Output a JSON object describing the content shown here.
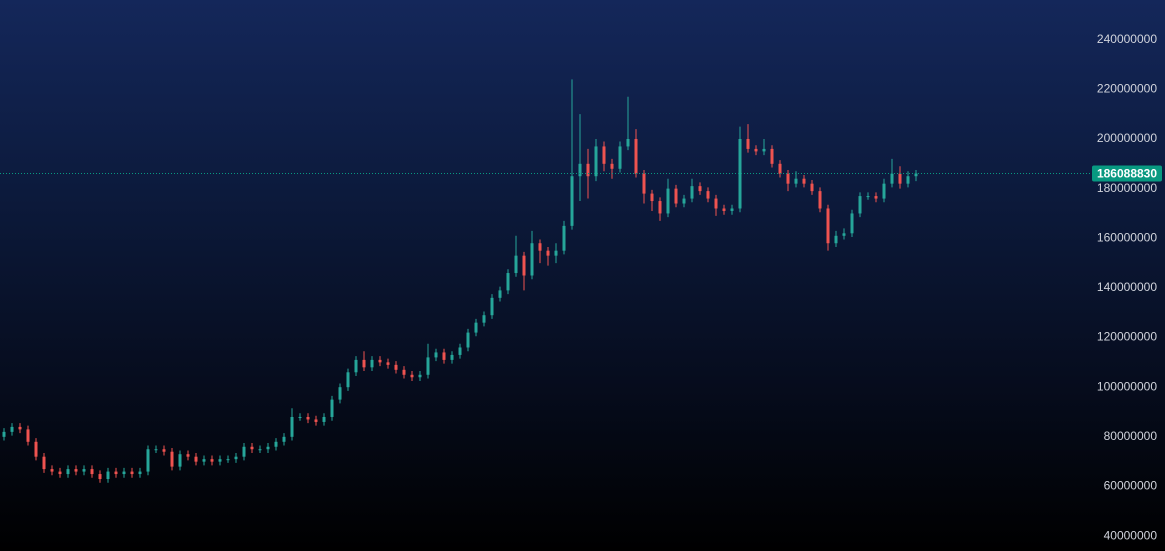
{
  "chart_data": {
    "type": "candlestick",
    "ylim": [
      34000000,
      256000000
    ],
    "yticks": [
      40000000,
      60000000,
      80000000,
      100000000,
      120000000,
      140000000,
      160000000,
      180000000,
      200000000,
      220000000,
      240000000
    ],
    "up_color": "#26a69a",
    "down_color": "#ef5350",
    "last_price_color": "#089981",
    "open": [
      80000000,
      82000000,
      84000000,
      83000000,
      78000000,
      72000000,
      67000000,
      66000000,
      65000000,
      67000000,
      66000000,
      67000000,
      65000000,
      63000000,
      66000000,
      65000000,
      66000000,
      65000000,
      66000000,
      75000000,
      75000000,
      74000000,
      68000000,
      73000000,
      72000000,
      70000000,
      71000000,
      70000000,
      71000000,
      71000000,
      72000000,
      76000000,
      75000000,
      75000000,
      76000000,
      78000000,
      80000000,
      88000000,
      88000000,
      87000000,
      86000000,
      88000000,
      95000000,
      100000000,
      106000000,
      111000000,
      108000000,
      111000000,
      110000000,
      109000000,
      107000000,
      105000000,
      104000000,
      105000000,
      112000000,
      114000000,
      111000000,
      113000000,
      116000000,
      122000000,
      126000000,
      129000000,
      136000000,
      139000000,
      146000000,
      153000000,
      145000000,
      158000000,
      155000000,
      153000000,
      155000000,
      165000000,
      185000000,
      190000000,
      185000000,
      197000000,
      190000000,
      188000000,
      197000000,
      200000000,
      186000000,
      178000000,
      175000000,
      170000000,
      180000000,
      174000000,
      176000000,
      181000000,
      179000000,
      176000000,
      172000000,
      171000000,
      172000000,
      200000000,
      196000000,
      195000000,
      196000000,
      190000000,
      186000000,
      182000000,
      184000000,
      182000000,
      179000000,
      172000000,
      158000000,
      161000000,
      162000000,
      170000000,
      177000000,
      177000000,
      176000000,
      182000000,
      186000000,
      182000000,
      185000000
    ],
    "high": [
      83500000,
      85500000,
      85500000,
      84500000,
      79500000,
      73500000,
      68500000,
      67500000,
      68500000,
      68500000,
      68500000,
      68500000,
      66500000,
      67500000,
      67500000,
      67500000,
      67500000,
      67500000,
      76500000,
      76500000,
      76500000,
      75500000,
      74500000,
      74500000,
      73500000,
      72500000,
      72500000,
      72500000,
      72500000,
      73500000,
      77500000,
      77500000,
      76500000,
      77500000,
      79500000,
      81500000,
      91500000,
      89500000,
      89500000,
      88500000,
      89500000,
      96500000,
      101500000,
      107500000,
      112500000,
      114500000,
      112500000,
      112500000,
      111500000,
      110500000,
      108500000,
      106500000,
      106500000,
      117500000,
      115500000,
      115500000,
      114500000,
      117500000,
      123500000,
      127500000,
      130500000,
      137500000,
      140500000,
      147500000,
      161000000,
      154500000,
      163000000,
      159500000,
      156500000,
      158000000,
      167000000,
      224000000,
      210000000,
      196000000,
      200000000,
      199000000,
      192000000,
      199000000,
      217000000,
      204000000,
      187500000,
      179500000,
      176500000,
      184000000,
      181500000,
      177500000,
      184000000,
      182500000,
      180500000,
      177500000,
      173500000,
      173500000,
      205000000,
      206000000,
      197500000,
      200000000,
      197500000,
      191500000,
      187500000,
      187000000,
      185500000,
      183500000,
      180500000,
      173500000,
      163000000,
      164000000,
      171500000,
      178500000,
      178500000,
      178500000,
      184000000,
      192000000,
      189000000,
      187000000,
      187500000
    ],
    "low": [
      78500000,
      80500000,
      81500000,
      76500000,
      70500000,
      65500000,
      64500000,
      63500000,
      63500000,
      64500000,
      64500000,
      63500000,
      61500000,
      61500000,
      63500000,
      63500000,
      63500000,
      63500000,
      64500000,
      73500000,
      72500000,
      66500000,
      66500000,
      70500000,
      68500000,
      68500000,
      68500000,
      68500000,
      69500000,
      69500000,
      70500000,
      73500000,
      73500000,
      73500000,
      74500000,
      76500000,
      78500000,
      86500000,
      85500000,
      84500000,
      84500000,
      86500000,
      93500000,
      98500000,
      104500000,
      106500000,
      106500000,
      108500000,
      107500000,
      105500000,
      103500000,
      102500000,
      102500000,
      103500000,
      110500000,
      109500000,
      109500000,
      111500000,
      114500000,
      120500000,
      124500000,
      127500000,
      134500000,
      137500000,
      144500000,
      139000000,
      143500000,
      150000000,
      149000000,
      150000000,
      153500000,
      163500000,
      175000000,
      176000000,
      183000000,
      187000000,
      184000000,
      186500000,
      195500000,
      184500000,
      174000000,
      171000000,
      167000000,
      168500000,
      172500000,
      172500000,
      174500000,
      177500000,
      174500000,
      169000000,
      169500000,
      169500000,
      170500000,
      194500000,
      193500000,
      193500000,
      188500000,
      184500000,
      179000000,
      180500000,
      180500000,
      177500000,
      170500000,
      155000000,
      156500000,
      159500000,
      160500000,
      168500000,
      175500000,
      174500000,
      174500000,
      180500000,
      180000000,
      180500000,
      183000000
    ],
    "close": [
      82000000,
      84000000,
      83000000,
      78000000,
      72000000,
      67000000,
      66000000,
      65000000,
      67000000,
      66000000,
      67000000,
      65000000,
      63000000,
      66000000,
      65000000,
      66000000,
      65000000,
      66000000,
      75000000,
      75000000,
      74000000,
      68000000,
      73000000,
      72000000,
      70000000,
      71000000,
      70000000,
      71000000,
      71000000,
      72000000,
      76000000,
      75000000,
      75000000,
      76000000,
      78000000,
      80000000,
      88000000,
      88000000,
      87000000,
      86000000,
      88000000,
      95000000,
      100000000,
      106000000,
      111000000,
      108000000,
      111000000,
      110000000,
      109000000,
      107000000,
      105000000,
      104000000,
      105000000,
      112000000,
      114000000,
      111000000,
      113000000,
      116000000,
      122000000,
      126000000,
      129000000,
      136000000,
      139000000,
      146000000,
      153000000,
      145000000,
      158000000,
      155000000,
      153000000,
      155000000,
      165000000,
      185000000,
      190000000,
      185000000,
      197000000,
      190000000,
      188000000,
      197000000,
      200000000,
      186000000,
      178000000,
      175000000,
      170000000,
      180000000,
      174000000,
      176000000,
      181000000,
      179000000,
      176000000,
      172000000,
      171000000,
      172000000,
      200000000,
      196000000,
      195000000,
      196000000,
      190000000,
      186000000,
      182000000,
      184000000,
      182000000,
      179000000,
      172000000,
      158000000,
      161000000,
      162000000,
      170000000,
      177000000,
      177000000,
      176000000,
      182000000,
      186000000,
      182000000,
      185000000,
      186088830
    ]
  }
}
